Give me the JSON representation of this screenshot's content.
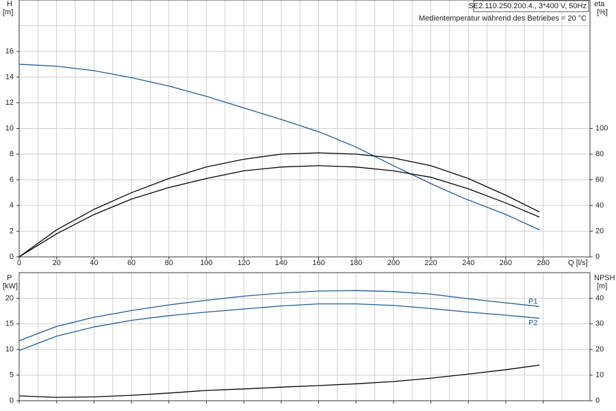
{
  "chart_data": [
    {
      "type": "line",
      "header_box": "SE2.110.250.200.4., 3*400 V, 50Hz",
      "annotation": "Medientemperatur während des Betriebes = 20 °C",
      "ylabel": "H",
      "yunit": "[m]",
      "y2label": "eta",
      "y2unit": "[%]",
      "xlabel": "Q [l/s]",
      "xlim": [
        0,
        305
      ],
      "xticks": [
        0,
        20,
        40,
        60,
        80,
        100,
        120,
        140,
        160,
        180,
        200,
        220,
        240,
        260,
        280
      ],
      "ylim": [
        0,
        20
      ],
      "yticks": [
        0,
        2,
        4,
        6,
        8,
        10,
        12,
        14,
        16
      ],
      "y2lim": [
        0,
        200
      ],
      "y2ticks": [
        0,
        20,
        40,
        60,
        80,
        100
      ],
      "grid": true,
      "series": [
        {
          "color": "#1a5a96",
          "x": [
            0,
            20,
            40,
            60,
            80,
            100,
            120,
            140,
            160,
            180,
            200,
            220,
            237,
            260,
            278
          ],
          "values": [
            15.0,
            14.85,
            14.5,
            13.95,
            13.3,
            12.5,
            11.6,
            10.7,
            9.75,
            8.55,
            7.1,
            5.7,
            4.6,
            3.3,
            2.1
          ]
        },
        {
          "color": "#000000",
          "axis": "y2",
          "x": [
            0,
            20,
            40,
            60,
            80,
            100,
            120,
            140,
            160,
            180,
            200,
            220,
            240,
            260,
            278
          ],
          "values": [
            0,
            21,
            37,
            50,
            61,
            70,
            76,
            80,
            81,
            80,
            77,
            71,
            61,
            48,
            35
          ]
        },
        {
          "color": "#000000",
          "axis": "y2",
          "x": [
            0,
            20,
            40,
            60,
            80,
            100,
            120,
            140,
            160,
            180,
            200,
            220,
            240,
            260,
            278
          ],
          "values": [
            0,
            18,
            33,
            45,
            54,
            61,
            67,
            70,
            71,
            70,
            67,
            62,
            53,
            42,
            31
          ]
        }
      ]
    },
    {
      "type": "line",
      "ylabel": "P",
      "yunit": "[kW]",
      "y2label": "NPSH",
      "y2unit": "[m]",
      "xlim": [
        0,
        305
      ],
      "ylim": [
        0,
        25
      ],
      "yticks": [
        0,
        5,
        10,
        15,
        20
      ],
      "y2lim": [
        0,
        50
      ],
      "y2ticks": [
        0,
        10,
        20,
        30,
        40
      ],
      "grid": true,
      "series": [
        {
          "name": "P1",
          "color": "#1a5a96",
          "x": [
            0,
            20,
            40,
            60,
            80,
            100,
            120,
            140,
            160,
            180,
            200,
            220,
            240,
            260,
            278
          ],
          "values": [
            11.7,
            14.5,
            16.3,
            17.6,
            18.7,
            19.6,
            20.4,
            21.0,
            21.4,
            21.5,
            21.3,
            20.8,
            19.9,
            19.1,
            18.4
          ]
        },
        {
          "name": "P2",
          "color": "#1a5a96",
          "x": [
            0,
            20,
            40,
            60,
            80,
            100,
            120,
            140,
            160,
            180,
            200,
            220,
            240,
            260,
            278
          ],
          "values": [
            9.8,
            12.6,
            14.4,
            15.7,
            16.6,
            17.3,
            17.9,
            18.5,
            18.9,
            18.9,
            18.6,
            18.0,
            17.3,
            16.7,
            16.1
          ]
        },
        {
          "color": "#000000",
          "axis": "y2",
          "x": [
            0,
            20,
            40,
            60,
            80,
            100,
            120,
            140,
            160,
            180,
            200,
            220,
            240,
            260,
            278
          ],
          "values": [
            1.9,
            1.3,
            1.5,
            2.1,
            3.0,
            4.0,
            4.6,
            5.3,
            5.9,
            6.6,
            7.5,
            8.8,
            10.4,
            12.1,
            13.9
          ]
        }
      ]
    }
  ]
}
